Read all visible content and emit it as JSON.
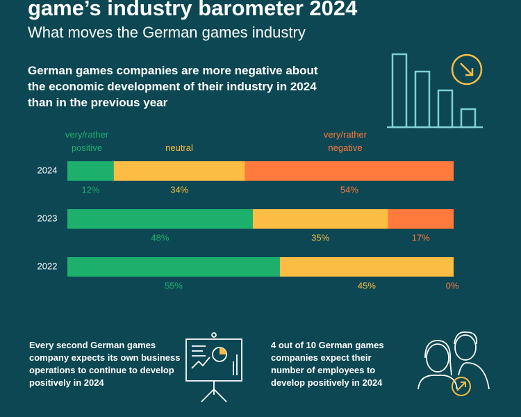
{
  "header": {
    "title": "game’s industry barometer 2024",
    "subtitle": "What moves the German games industry"
  },
  "chart_data": {
    "type": "bar",
    "orientation": "horizontal",
    "stacked": true,
    "title": "German games companies are more negative about the economic development of their industry in 2024 than in the previous year",
    "categories": [
      "2024",
      "2023",
      "2022"
    ],
    "series": [
      {
        "name": "very/rather positive",
        "color": "#1db06c",
        "values": [
          12,
          48,
          55
        ],
        "value_labels": [
          "12%",
          "48%",
          "55%"
        ]
      },
      {
        "name": "neutral",
        "color": "#fbbd43",
        "values": [
          34,
          35,
          45
        ],
        "value_labels": [
          "34%",
          "35%",
          "45%"
        ]
      },
      {
        "name": "very/rather negative",
        "color": "#ff7a3c",
        "values": [
          54,
          17,
          0
        ],
        "value_labels": [
          "54%",
          "17%",
          "0%"
        ]
      }
    ]
  },
  "footer": {
    "left": "Every second German games company expects its own business operations to continue to develop positively in 2024",
    "right": "4 out of 10 German games companies expect their number of employees to develop positively in 2024"
  }
}
